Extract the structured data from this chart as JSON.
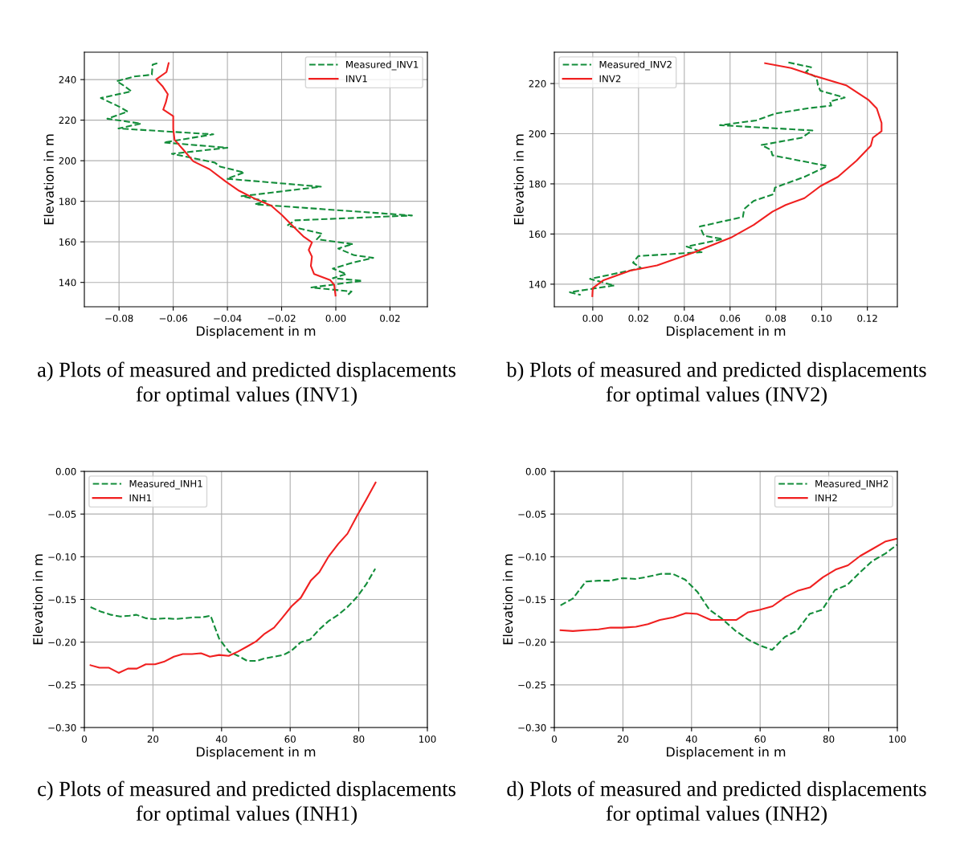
{
  "chart_data": [
    {
      "type": "line",
      "xlabel": "Displacement in m",
      "ylabel": "Elevation in m",
      "xlim": [
        -0.0928,
        0.0338
      ],
      "ylim": [
        128,
        253.5
      ],
      "xticks": [
        {
          "value": -0.08,
          "label": "−0.08"
        },
        {
          "value": -0.06,
          "label": "−0.06"
        },
        {
          "value": -0.04,
          "label": "−0.04"
        },
        {
          "value": -0.02,
          "label": "−0.02"
        },
        {
          "value": 0,
          "label": "0.00"
        },
        {
          "value": 0.02,
          "label": "0.02"
        }
      ],
      "yticks": [
        140,
        160,
        180,
        200,
        220,
        240
      ],
      "grid": true,
      "legend": "top right",
      "marker": "none",
      "annotations": [
        "a) Plots of measured and predicted displacements\nfor optimal values (INV1)"
      ],
      "series": [
        {
          "name": "Measured_INV1",
          "color": "#138d3a",
          "line_style": "dashed",
          "x": [
            -0.0659,
            -0.0676,
            -0.0679,
            -0.0744,
            -0.0809,
            -0.0788,
            -0.0754,
            -0.0867,
            -0.0813,
            -0.0793,
            -0.0768,
            -0.0843,
            -0.0719,
            -0.0802,
            -0.0452,
            -0.0635,
            -0.04,
            -0.0605,
            -0.0447,
            -0.0427,
            -0.0338,
            -0.0402,
            -0.0055,
            -0.0348,
            -0.0258,
            -0.0298,
            0.0281,
            -0.015,
            -0.0179,
            -0.005,
            -0.007,
            0.0063,
            0.0009,
            0.0068,
            0.0138,
            0.0053,
            -0.0011,
            0.0039,
            -0.0011,
            0.0098,
            -0.009,
            0.0058,
            0.0044
          ],
          "values": [
            248.1,
            247.4,
            242.4,
            241.5,
            239.2,
            237.5,
            234.2,
            230.9,
            227.5,
            226.2,
            224.2,
            220.7,
            218.3,
            215.9,
            213.0,
            209.0,
            206.4,
            203.4,
            199.1,
            197.1,
            194.2,
            191.1,
            187.2,
            182.5,
            180.1,
            178.5,
            173.0,
            170.6,
            168.0,
            164.0,
            161.3,
            158.9,
            156.7,
            153.4,
            152.1,
            149.4,
            146.8,
            144.1,
            142.1,
            140.8,
            137.5,
            135.5,
            133.8
          ]
        },
        {
          "name": "INV1",
          "color": "#f02020",
          "line_style": "solid",
          "x": [
            -0.0617,
            -0.0625,
            -0.0663,
            -0.064,
            -0.062,
            -0.0627,
            -0.0637,
            -0.06,
            -0.06,
            -0.0595,
            -0.056,
            -0.0526,
            -0.0466,
            -0.0407,
            -0.0357,
            -0.0298,
            -0.0239,
            -0.0199,
            -0.016,
            -0.012,
            -0.0088,
            -0.01,
            -0.0088,
            -0.0092,
            -0.008,
            -0.0021,
            -0.0006,
            -0.0001
          ],
          "values": [
            248.1,
            243.7,
            240.1,
            236.8,
            232.8,
            228.9,
            225.2,
            222.0,
            215.6,
            210.3,
            205.0,
            199.7,
            195.8,
            189.8,
            185.2,
            181.2,
            177.9,
            173.2,
            168.0,
            162.7,
            159.7,
            156.0,
            152.7,
            148.1,
            144.1,
            141.2,
            138.8,
            133.5
          ]
        }
      ]
    },
    {
      "type": "line",
      "xlabel": "Displacement in m",
      "ylabel": "Elevation in m",
      "xlim": [
        -0.0168,
        0.1331
      ],
      "ylim": [
        131,
        232.5
      ],
      "xticks": [
        {
          "value": 0,
          "label": "0.00"
        },
        {
          "value": 0.02,
          "label": "0.02"
        },
        {
          "value": 0.04,
          "label": "0.04"
        },
        {
          "value": 0.06,
          "label": "0.06"
        },
        {
          "value": 0.08,
          "label": "0.08"
        },
        {
          "value": 0.1,
          "label": "0.10"
        },
        {
          "value": 0.12,
          "label": "0.12"
        }
      ],
      "yticks": [
        140,
        160,
        180,
        200,
        220
      ],
      "grid": true,
      "legend": "top left",
      "marker": "none",
      "annotations": [
        "b) Plots of measured and predicted displacements\nfor optimal values (INV2)"
      ],
      "series": [
        {
          "name": "Measured_INV2",
          "color": "#138d3a",
          "line_style": "dashed",
          "x": [
            0.0855,
            0.0954,
            0.0931,
            0.0978,
            0.0984,
            0.0995,
            0.1101,
            0.1036,
            0.1042,
            0.0937,
            0.0796,
            0.0714,
            0.0556,
            0.096,
            0.0913,
            0.0738,
            0.0779,
            0.0785,
            0.1025,
            0.0925,
            0.0796,
            0.079,
            0.0703,
            0.0662,
            0.0656,
            0.0468,
            0.0486,
            0.0568,
            0.041,
            0.048,
            0.0199,
            0.0176,
            0.0211,
            -0.0012,
            0.0094,
            -0.01,
            -0.0053
          ],
          "values": [
            228.4,
            226.5,
            224.6,
            222.5,
            219.3,
            217.1,
            214.4,
            212.8,
            211.2,
            210.1,
            208.0,
            205.3,
            203.4,
            201.3,
            198.4,
            195.5,
            193.5,
            191.4,
            187.1,
            182.8,
            178.5,
            175.9,
            173.2,
            170.0,
            166.8,
            163.0,
            159.3,
            158.0,
            155.0,
            152.8,
            151.2,
            148.6,
            146.4,
            142.1,
            139.5,
            136.8,
            135.7
          ]
        },
        {
          "name": "INV2",
          "color": "#f02020",
          "line_style": "solid",
          "x": [
            0.0753,
            0.0867,
            0.0972,
            0.1107,
            0.1206,
            0.1241,
            0.1262,
            0.1262,
            0.1224,
            0.1215,
            0.1153,
            0.1071,
            0.0995,
            0.0925,
            0.0843,
            0.0785,
            0.0703,
            0.0609,
            0.055,
            0.0445,
            0.0281,
            0.0164,
            0.0047,
            0.0,
            -0.0002
          ],
          "values": [
            228.1,
            226.2,
            223.0,
            219.3,
            213.4,
            210.1,
            204.3,
            201.0,
            198.4,
            195.2,
            189.3,
            182.8,
            179.1,
            174.3,
            171.6,
            168.9,
            163.6,
            158.8,
            156.6,
            152.8,
            147.5,
            145.4,
            141.6,
            138.4,
            135.2
          ]
        }
      ]
    },
    {
      "type": "line",
      "xlabel": "Displacement in m",
      "ylabel": "Elevation in m",
      "xlim": [
        0,
        100
      ],
      "ylim": [
        -0.3,
        0
      ],
      "xticks": [
        0,
        20,
        40,
        60,
        80,
        100
      ],
      "yticks": [
        {
          "value": 0,
          "label": "0.00"
        },
        {
          "value": -0.05,
          "label": "−0.05"
        },
        {
          "value": -0.1,
          "label": "−0.10"
        },
        {
          "value": -0.15,
          "label": "−0.15"
        },
        {
          "value": -0.2,
          "label": "−0.20"
        },
        {
          "value": -0.25,
          "label": "−0.25"
        },
        {
          "value": -0.3,
          "label": "−0.30"
        }
      ],
      "grid": true,
      "legend": "top left",
      "marker": "none",
      "annotations": [
        "c) Plots of measured and predicted displacements\nfor optimal values (INH1)"
      ],
      "series": [
        {
          "name": "Measured_INH1",
          "color": "#138d3a",
          "line_style": "dashed",
          "x": [
            1.8,
            4.7,
            7.8,
            10.5,
            13.2,
            15.2,
            17.9,
            20.6,
            23.8,
            26.5,
            29.2,
            31.6,
            34.3,
            36.8,
            39.3,
            42.1,
            44.8,
            47.5,
            50.2,
            52.6,
            55.3,
            58.0,
            60.4,
            63.1,
            65.8,
            68.5,
            71.3,
            74.0,
            76.7,
            79.5,
            82.2,
            84.8
          ],
          "values": [
            -0.159,
            -0.164,
            -0.168,
            -0.17,
            -0.169,
            -0.168,
            -0.172,
            -0.173,
            -0.172,
            -0.173,
            -0.172,
            -0.171,
            -0.171,
            -0.169,
            -0.196,
            -0.211,
            -0.216,
            -0.222,
            -0.222,
            -0.219,
            -0.217,
            -0.215,
            -0.21,
            -0.2,
            -0.197,
            -0.185,
            -0.175,
            -0.168,
            -0.159,
            -0.147,
            -0.132,
            -0.114
          ]
        },
        {
          "name": "INH1",
          "color": "#f02020",
          "line_style": "solid",
          "x": [
            1.8,
            4.4,
            7.2,
            10.0,
            12.7,
            15.3,
            17.9,
            20.6,
            23.2,
            26.1,
            28.7,
            31.4,
            34.0,
            36.6,
            39.3,
            42.1,
            44.8,
            47.5,
            50.1,
            52.6,
            55.3,
            57.6,
            60.4,
            63.1,
            66.0,
            68.5,
            71.3,
            74.0,
            76.7,
            79.5,
            82.2,
            84.9
          ],
          "values": [
            -0.227,
            -0.23,
            -0.23,
            -0.236,
            -0.231,
            -0.231,
            -0.226,
            -0.226,
            -0.223,
            -0.217,
            -0.214,
            -0.214,
            -0.213,
            -0.217,
            -0.215,
            -0.216,
            -0.211,
            -0.205,
            -0.199,
            -0.19,
            -0.183,
            -0.172,
            -0.158,
            -0.148,
            -0.128,
            -0.118,
            -0.099,
            -0.085,
            -0.073,
            -0.052,
            -0.033,
            -0.013
          ]
        }
      ]
    },
    {
      "type": "line",
      "xlabel": "Displacement in m",
      "ylabel": "Elevation in m",
      "xlim": [
        0,
        100
      ],
      "ylim": [
        -0.3,
        0
      ],
      "xticks": [
        0,
        20,
        40,
        60,
        80,
        100
      ],
      "yticks": [
        {
          "value": 0,
          "label": "0.00"
        },
        {
          "value": -0.05,
          "label": "−0.05"
        },
        {
          "value": -0.1,
          "label": "−0.10"
        },
        {
          "value": -0.15,
          "label": "−0.15"
        },
        {
          "value": -0.2,
          "label": "−0.20"
        },
        {
          "value": -0.25,
          "label": "−0.25"
        },
        {
          "value": -0.3,
          "label": "−0.30"
        }
      ],
      "grid": true,
      "legend": "top right",
      "marker": "none",
      "annotations": [
        "d) Plots of measured and predicted displacements\nfor optimal values (INH2)"
      ],
      "series": [
        {
          "name": "Measured_INH2",
          "color": "#138d3a",
          "line_style": "dashed",
          "x": [
            1.8,
            5.4,
            9.2,
            12.9,
            16.4,
            19.9,
            23.8,
            27.7,
            31.2,
            34.5,
            38.2,
            41.7,
            45.2,
            48.7,
            52.6,
            56.5,
            60.0,
            63.5,
            67.2,
            70.9,
            74.4,
            78.1,
            81.8,
            85.4,
            89.2,
            92.7,
            96.6,
            99.9
          ],
          "values": [
            -0.157,
            -0.149,
            -0.129,
            -0.128,
            -0.128,
            -0.125,
            -0.126,
            -0.123,
            -0.12,
            -0.12,
            -0.127,
            -0.141,
            -0.162,
            -0.172,
            -0.186,
            -0.197,
            -0.204,
            -0.209,
            -0.194,
            -0.186,
            -0.167,
            -0.162,
            -0.139,
            -0.133,
            -0.118,
            -0.105,
            -0.096,
            -0.086
          ]
        },
        {
          "name": "INH2",
          "color": "#f02020",
          "line_style": "solid",
          "x": [
            1.8,
            5.4,
            9.0,
            12.9,
            16.4,
            19.9,
            23.8,
            27.3,
            30.8,
            34.7,
            38.4,
            41.7,
            45.6,
            49.5,
            53.0,
            56.5,
            60.0,
            63.6,
            67.4,
            70.9,
            74.5,
            78.3,
            82.0,
            85.6,
            89.2,
            92.7,
            96.6,
            99.7
          ],
          "values": [
            -0.186,
            -0.187,
            -0.186,
            -0.185,
            -0.183,
            -0.183,
            -0.182,
            -0.179,
            -0.174,
            -0.171,
            -0.166,
            -0.167,
            -0.174,
            -0.174,
            -0.174,
            -0.165,
            -0.162,
            -0.158,
            -0.147,
            -0.14,
            -0.136,
            -0.124,
            -0.115,
            -0.11,
            -0.099,
            -0.091,
            -0.082,
            -0.079
          ]
        }
      ]
    }
  ]
}
